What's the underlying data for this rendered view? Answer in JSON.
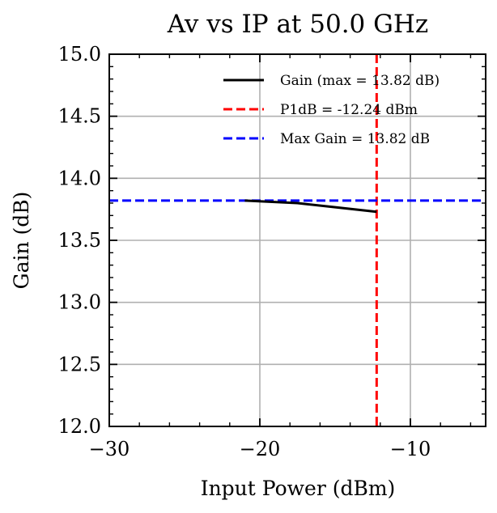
{
  "chart_data": {
    "type": "line",
    "title": "Av vs IP at 50.0 GHz",
    "xlabel": "Input Power (dBm)",
    "ylabel": "Gain (dB)",
    "xlim": [
      -30,
      -5
    ],
    "ylim": [
      12.0,
      15.0
    ],
    "x_ticks": [
      -30,
      -20,
      -10
    ],
    "x_tick_labels": [
      "−30",
      "−20",
      "−10"
    ],
    "y_ticks": [
      12.0,
      12.5,
      13.0,
      13.5,
      14.0,
      14.5,
      15.0
    ],
    "y_tick_labels": [
      "12.0",
      "12.5",
      "13.0",
      "13.5",
      "14.0",
      "14.5",
      "15.0"
    ],
    "grid": true,
    "legend_position": "top-right",
    "series": [
      {
        "name": "Gain (max = 13.82 dB)",
        "color": "#000000",
        "style": "solid",
        "x": [
          -21.0,
          -17.5,
          -12.24
        ],
        "y": [
          13.82,
          13.8,
          13.73
        ]
      }
    ],
    "reference_lines": [
      {
        "name": "P1dB = -12.24 dBm",
        "orientation": "vertical",
        "value": -12.24,
        "color": "#ff0000",
        "style": "dashed"
      },
      {
        "name": "Max Gain = 13.82 dB",
        "orientation": "horizontal",
        "value": 13.82,
        "color": "#0000ff",
        "style": "dashed"
      }
    ]
  }
}
